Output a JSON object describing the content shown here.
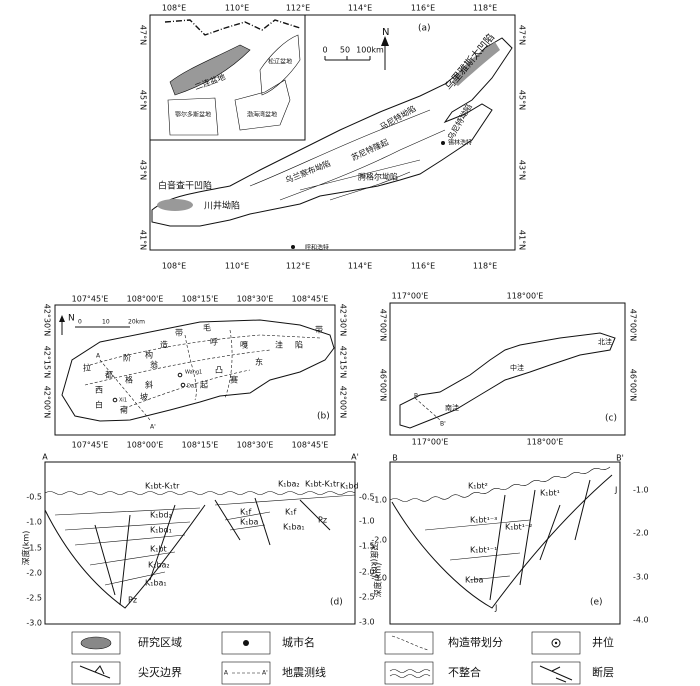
{
  "panel_a": {
    "label": "(a)",
    "lon_labels": [
      "108°E",
      "110°E",
      "112°E",
      "114°E",
      "116°E",
      "118°E"
    ],
    "lat_labels": [
      "47°N",
      "45°N",
      "43°N",
      "41°N"
    ],
    "north": "N",
    "scale": [
      "0",
      "50",
      "100km"
    ],
    "inset": [
      "二连盆地",
      "松辽盆地",
      "鄂尔多斯盆地",
      "渤海湾盆地"
    ],
    "places": [
      "乌里雅斯太凹陷",
      "乌尼特坳陷",
      "马尼特坳陷",
      "苏尼特隆起",
      "锡林浩特",
      "乌兰察布坳陷",
      "腾格尔坳陷",
      "白音查干凹陷",
      "川井坳陷",
      "呼和浩特"
    ]
  },
  "panel_b": {
    "label": "(b)",
    "lon_labels": [
      "107°45'E",
      "108°00'E",
      "108°15'E",
      "108°30'E",
      "108°45'E"
    ],
    "lat_labels": [
      "42°30'N",
      "42°15'N",
      "42°00'N"
    ],
    "north": "N",
    "scale": [
      "0",
      "10",
      "20km"
    ],
    "line_start": "A",
    "line_end": "A'",
    "wells": [
      "Wang1",
      "Da1",
      "Xi1"
    ],
    "zones": [
      "带",
      "造",
      "构",
      "阶",
      "拉",
      "斜",
      "坡",
      "毛",
      "呼",
      "嘎",
      "凸",
      "起",
      "赛",
      "洼",
      "陷",
      "带",
      "东",
      "西",
      "白",
      "南",
      "翁",
      "都",
      "格"
    ]
  },
  "panel_c": {
    "label": "(c)",
    "lon_labels": [
      "117°00'E",
      "118°00'E"
    ],
    "lat_labels": [
      "47°00'N",
      "46°00'N"
    ],
    "subbasins": [
      "北洼",
      "中洼",
      "南洼"
    ],
    "line_start": "B",
    "line_end": "B'"
  },
  "panel_d": {
    "label": "(d)",
    "line_start": "A",
    "line_end": "A'",
    "axis_title": "深度(km)",
    "left_ticks": [
      "-0.5",
      "-1.0",
      "-1.5",
      "-2.0",
      "-2.5",
      "-3.0"
    ],
    "right_ticks": [
      "-0.5",
      "-1.0",
      "-1.5",
      "-2.0",
      "-2.5",
      "-3.0"
    ],
    "units": [
      "K₁bt-K₁tr",
      "K₁bd₂",
      "K₁bd₁",
      "K₁bt",
      "K₁ba₂",
      "K₁ba₁",
      "Pz",
      "K₁ba₂",
      "K₁bt-K₁tr",
      "K₁bd",
      "K₁f",
      "K₁ba",
      "K₁f",
      "K₁ba₁",
      "Pz"
    ]
  },
  "panel_e": {
    "label": "(e)",
    "line_start": "B",
    "line_end": "B'",
    "axis_title": "深度(km)",
    "left_ticks": [
      "-1.0",
      "-2.0",
      "-3.0"
    ],
    "right_ticks": [
      "-1.0",
      "-2.0",
      "-3.0",
      "-4.0"
    ],
    "units": [
      "K₁bt²",
      "K₁bt¹",
      "K₁bt¹⁻³",
      "K₁bt¹⁻²",
      "K₁bt¹⁻¹",
      "K₁ba",
      "J",
      "J"
    ]
  },
  "legend": {
    "items": [
      "研究区域",
      "城市名",
      "构造带划分",
      "井位",
      "尖灭边界",
      "地震测线",
      "不整合",
      "断层"
    ],
    "seismic_icon": [
      "A",
      "A'"
    ]
  }
}
